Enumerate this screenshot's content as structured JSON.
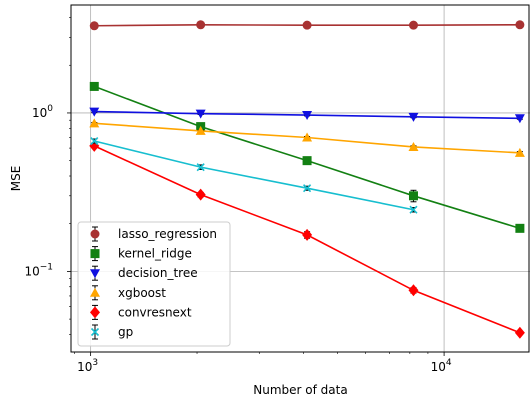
{
  "chart_data": {
    "type": "line",
    "xscale": "log",
    "yscale": "log",
    "xlabel": "Number of data",
    "ylabel": "MSE",
    "xlim": [
      880,
      17500
    ],
    "ylim": [
      0.031,
      4.8
    ],
    "x_ticks": [
      {
        "value": 1000,
        "base": "10",
        "exp": "3"
      },
      {
        "value": 10000,
        "base": "10",
        "exp": "4"
      }
    ],
    "y_ticks": [
      {
        "value": 1,
        "label": "10",
        "exp": "0"
      },
      {
        "value": 0.1,
        "label": "10",
        "exp": "−1"
      }
    ],
    "grid": true,
    "legend_position": "lower-left",
    "series": [
      {
        "name": "lasso_regression",
        "color": "#a83232",
        "marker": "circle",
        "x": [
          1024,
          2048,
          4096,
          8192,
          16384
        ],
        "y": [
          3.55,
          3.6,
          3.58,
          3.58,
          3.6
        ],
        "err": [
          0.06,
          0.06,
          0.06,
          0.06,
          0.06
        ]
      },
      {
        "name": "kernel_ridge",
        "color": "#138013",
        "marker": "square",
        "x": [
          1024,
          2048,
          4096,
          8192,
          16384
        ],
        "y": [
          1.47,
          0.82,
          0.5,
          0.3,
          0.187
        ],
        "err": [
          0.04,
          0.03,
          0.02,
          0.025,
          0.008
        ]
      },
      {
        "name": "decision_tree",
        "color": "#1010e0",
        "marker": "triangle-down",
        "x": [
          1024,
          2048,
          4096,
          8192,
          16384
        ],
        "y": [
          1.02,
          0.99,
          0.97,
          0.945,
          0.925
        ],
        "err": [
          0.015,
          0.012,
          0.012,
          0.012,
          0.012
        ]
      },
      {
        "name": "xgboost",
        "color": "#ffa500",
        "marker": "triangle-up",
        "x": [
          1024,
          2048,
          4096,
          8192,
          16384
        ],
        "y": [
          0.86,
          0.77,
          0.7,
          0.61,
          0.56
        ],
        "err": [
          0.01,
          0.01,
          0.01,
          0.01,
          0.01
        ]
      },
      {
        "name": "convresnext",
        "color": "#ff0000",
        "marker": "diamond",
        "x": [
          1024,
          2048,
          4096,
          8192,
          16384
        ],
        "y": [
          0.62,
          0.305,
          0.17,
          0.076,
          0.041
        ],
        "err": [
          0.01,
          0.01,
          0.008,
          0.003,
          0.001
        ]
      },
      {
        "name": "gp",
        "color": "#17becf",
        "marker": "x",
        "x": [
          1024,
          2048,
          4096,
          8192
        ],
        "y": [
          0.665,
          0.455,
          0.335,
          0.245
        ],
        "err": [
          0.02,
          0.015,
          0.01,
          0.008
        ]
      }
    ]
  }
}
